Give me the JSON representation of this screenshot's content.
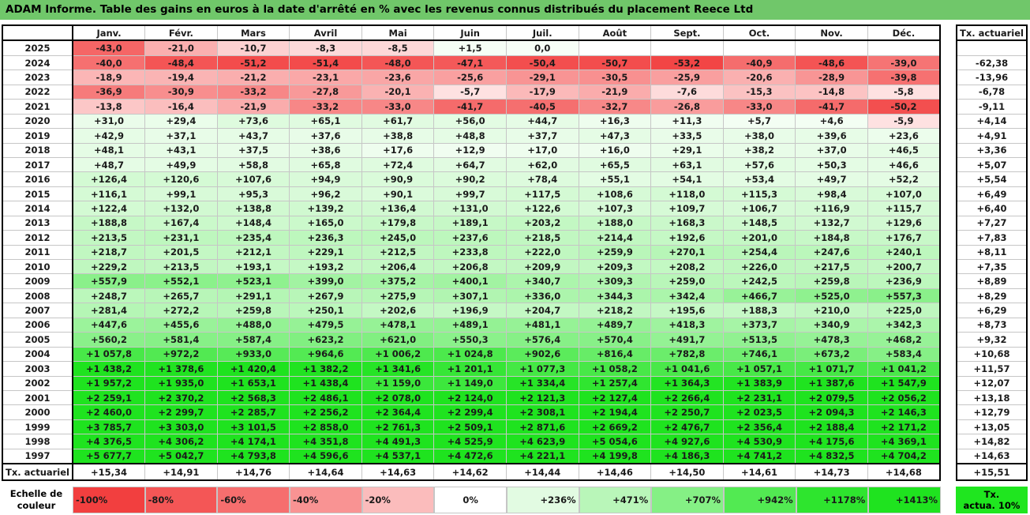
{
  "title": "ADAM Informe. Table des gains en euros à la date d'arrêté en % avec les revenus connus distribués du placement Reece Ltd",
  "chart_data": {
    "type": "heatmap",
    "title": "ADAM Informe. Table des gains en euros à la date d'arrêté en % avec les revenus connus distribués du placement Reece Ltd",
    "columns": [
      "Janv.",
      "Févr.",
      "Mars",
      "Avril",
      "Mai",
      "Juin",
      "Juil.",
      "Août",
      "Sept.",
      "Oct.",
      "Nov.",
      "Déc."
    ],
    "side_header": "Tx. actuariel",
    "rows": [
      {
        "year": "2025",
        "cells": [
          "-43,0",
          "-21,0",
          "-10,7",
          "-8,3",
          "-8,5",
          "+1,5",
          "0,0",
          "",
          "",
          "",
          "",
          ""
        ],
        "values": [
          -43.0,
          -21.0,
          -10.7,
          -8.3,
          -8.5,
          1.5,
          0.0,
          null,
          null,
          null,
          null,
          null
        ],
        "tx": ""
      },
      {
        "year": "2024",
        "cells": [
          "-40,0",
          "-48,4",
          "-51,2",
          "-51,4",
          "-48,0",
          "-47,1",
          "-50,4",
          "-50,7",
          "-53,2",
          "-40,9",
          "-48,6",
          "-39,0"
        ],
        "values": [
          -40.0,
          -48.4,
          -51.2,
          -51.4,
          -48.0,
          -47.1,
          -50.4,
          -50.7,
          -53.2,
          -40.9,
          -48.6,
          -39.0
        ],
        "tx": "-62,38"
      },
      {
        "year": "2023",
        "cells": [
          "-18,9",
          "-19,4",
          "-21,2",
          "-23,1",
          "-23,6",
          "-25,6",
          "-29,1",
          "-30,5",
          "-25,9",
          "-20,6",
          "-28,9",
          "-39,8"
        ],
        "values": [
          -18.9,
          -19.4,
          -21.2,
          -23.1,
          -23.6,
          -25.6,
          -29.1,
          -30.5,
          -25.9,
          -20.6,
          -28.9,
          -39.8
        ],
        "tx": "-13,96"
      },
      {
        "year": "2022",
        "cells": [
          "-36,9",
          "-30,9",
          "-33,2",
          "-27,8",
          "-20,1",
          "-5,7",
          "-17,9",
          "-21,9",
          "-7,6",
          "-15,3",
          "-14,8",
          "-5,8"
        ],
        "values": [
          -36.9,
          -30.9,
          -33.2,
          -27.8,
          -20.1,
          -5.7,
          -17.9,
          -21.9,
          -7.6,
          -15.3,
          -14.8,
          -5.8
        ],
        "tx": "-6,78"
      },
      {
        "year": "2021",
        "cells": [
          "-13,8",
          "-16,4",
          "-21,9",
          "-33,2",
          "-33,0",
          "-41,7",
          "-40,5",
          "-32,7",
          "-26,8",
          "-33,0",
          "-41,7",
          "-50,2"
        ],
        "values": [
          -13.8,
          -16.4,
          -21.9,
          -33.2,
          -33.0,
          -41.7,
          -40.5,
          -32.7,
          -26.8,
          -33.0,
          -41.7,
          -50.2
        ],
        "tx": "-9,11"
      },
      {
        "year": "2020",
        "cells": [
          "+31,0",
          "+29,4",
          "+73,6",
          "+65,1",
          "+61,7",
          "+56,0",
          "+44,7",
          "+16,3",
          "+11,3",
          "+5,7",
          "+4,6",
          "-5,9"
        ],
        "values": [
          31.0,
          29.4,
          73.6,
          65.1,
          61.7,
          56.0,
          44.7,
          16.3,
          11.3,
          5.7,
          4.6,
          -5.9
        ],
        "tx": "+4,14"
      },
      {
        "year": "2019",
        "cells": [
          "+42,9",
          "+37,1",
          "+43,7",
          "+37,6",
          "+38,8",
          "+48,8",
          "+37,7",
          "+47,3",
          "+33,5",
          "+38,0",
          "+39,6",
          "+23,6"
        ],
        "values": [
          42.9,
          37.1,
          43.7,
          37.6,
          38.8,
          48.8,
          37.7,
          47.3,
          33.5,
          38.0,
          39.6,
          23.6
        ],
        "tx": "+4,91"
      },
      {
        "year": "2018",
        "cells": [
          "+48,1",
          "+43,1",
          "+37,5",
          "+38,6",
          "+17,6",
          "+12,9",
          "+17,0",
          "+16,0",
          "+29,1",
          "+38,2",
          "+37,0",
          "+46,5"
        ],
        "values": [
          48.1,
          43.1,
          37.5,
          38.6,
          17.6,
          12.9,
          17.0,
          16.0,
          29.1,
          38.2,
          37.0,
          46.5
        ],
        "tx": "+3,36"
      },
      {
        "year": "2017",
        "cells": [
          "+48,7",
          "+49,9",
          "+58,8",
          "+65,8",
          "+72,4",
          "+64,7",
          "+62,0",
          "+65,5",
          "+63,1",
          "+57,6",
          "+50,3",
          "+46,6"
        ],
        "values": [
          48.7,
          49.9,
          58.8,
          65.8,
          72.4,
          64.7,
          62.0,
          65.5,
          63.1,
          57.6,
          50.3,
          46.6
        ],
        "tx": "+5,07"
      },
      {
        "year": "2016",
        "cells": [
          "+126,4",
          "+120,6",
          "+107,6",
          "+94,9",
          "+90,9",
          "+90,2",
          "+78,4",
          "+55,1",
          "+54,1",
          "+53,4",
          "+49,7",
          "+52,2"
        ],
        "values": [
          126.4,
          120.6,
          107.6,
          94.9,
          90.9,
          90.2,
          78.4,
          55.1,
          54.1,
          53.4,
          49.7,
          52.2
        ],
        "tx": "+5,54"
      },
      {
        "year": "2015",
        "cells": [
          "+116,1",
          "+99,1",
          "+95,3",
          "+96,2",
          "+90,1",
          "+99,7",
          "+117,5",
          "+108,6",
          "+118,0",
          "+115,3",
          "+98,4",
          "+107,0"
        ],
        "values": [
          116.1,
          99.1,
          95.3,
          96.2,
          90.1,
          99.7,
          117.5,
          108.6,
          118.0,
          115.3,
          98.4,
          107.0
        ],
        "tx": "+6,49"
      },
      {
        "year": "2014",
        "cells": [
          "+122,4",
          "+132,0",
          "+138,8",
          "+139,2",
          "+136,4",
          "+131,0",
          "+122,6",
          "+107,3",
          "+109,7",
          "+106,7",
          "+116,9",
          "+115,7"
        ],
        "values": [
          122.4,
          132.0,
          138.8,
          139.2,
          136.4,
          131.0,
          122.6,
          107.3,
          109.7,
          106.7,
          116.9,
          115.7
        ],
        "tx": "+6,40"
      },
      {
        "year": "2013",
        "cells": [
          "+188,8",
          "+167,4",
          "+148,4",
          "+165,0",
          "+179,8",
          "+189,1",
          "+203,2",
          "+188,0",
          "+168,3",
          "+148,5",
          "+132,7",
          "+129,6"
        ],
        "values": [
          188.8,
          167.4,
          148.4,
          165.0,
          179.8,
          189.1,
          203.2,
          188.0,
          168.3,
          148.5,
          132.7,
          129.6
        ],
        "tx": "+7,27"
      },
      {
        "year": "2012",
        "cells": [
          "+213,5",
          "+231,1",
          "+235,4",
          "+236,3",
          "+245,0",
          "+237,6",
          "+218,5",
          "+214,4",
          "+192,6",
          "+201,0",
          "+184,8",
          "+176,7"
        ],
        "values": [
          213.5,
          231.1,
          235.4,
          236.3,
          245.0,
          237.6,
          218.5,
          214.4,
          192.6,
          201.0,
          184.8,
          176.7
        ],
        "tx": "+7,83"
      },
      {
        "year": "2011",
        "cells": [
          "+218,7",
          "+201,5",
          "+212,1",
          "+229,1",
          "+212,5",
          "+233,8",
          "+222,0",
          "+259,9",
          "+270,1",
          "+254,4",
          "+247,6",
          "+240,1"
        ],
        "values": [
          218.7,
          201.5,
          212.1,
          229.1,
          212.5,
          233.8,
          222.0,
          259.9,
          270.1,
          254.4,
          247.6,
          240.1
        ],
        "tx": "+8,11"
      },
      {
        "year": "2010",
        "cells": [
          "+229,2",
          "+213,5",
          "+193,1",
          "+193,2",
          "+206,4",
          "+206,8",
          "+209,9",
          "+209,3",
          "+208,2",
          "+226,0",
          "+217,5",
          "+200,7"
        ],
        "values": [
          229.2,
          213.5,
          193.1,
          193.2,
          206.4,
          206.8,
          209.9,
          209.3,
          208.2,
          226.0,
          217.5,
          200.7
        ],
        "tx": "+7,35"
      },
      {
        "year": "2009",
        "cells": [
          "+557,9",
          "+552,1",
          "+523,1",
          "+399,0",
          "+375,2",
          "+400,1",
          "+340,7",
          "+309,3",
          "+259,0",
          "+242,5",
          "+259,8",
          "+236,9"
        ],
        "values": [
          557.9,
          552.1,
          523.1,
          399.0,
          375.2,
          400.1,
          340.7,
          309.3,
          259.0,
          242.5,
          259.8,
          236.9
        ],
        "tx": "+8,89"
      },
      {
        "year": "2008",
        "cells": [
          "+248,7",
          "+265,7",
          "+291,1",
          "+267,9",
          "+275,9",
          "+307,1",
          "+336,0",
          "+344,3",
          "+342,4",
          "+466,7",
          "+525,0",
          "+557,3"
        ],
        "values": [
          248.7,
          265.7,
          291.1,
          267.9,
          275.9,
          307.1,
          336.0,
          344.3,
          342.4,
          466.7,
          525.0,
          557.3
        ],
        "tx": "+8,29"
      },
      {
        "year": "2007",
        "cells": [
          "+281,4",
          "+272,2",
          "+259,8",
          "+250,1",
          "+202,6",
          "+196,9",
          "+204,7",
          "+218,2",
          "+195,6",
          "+188,3",
          "+210,0",
          "+225,0"
        ],
        "values": [
          281.4,
          272.2,
          259.8,
          250.1,
          202.6,
          196.9,
          204.7,
          218.2,
          195.6,
          188.3,
          210.0,
          225.0
        ],
        "tx": "+6,29"
      },
      {
        "year": "2006",
        "cells": [
          "+447,6",
          "+455,6",
          "+488,0",
          "+479,5",
          "+478,1",
          "+489,1",
          "+481,1",
          "+489,7",
          "+418,3",
          "+373,7",
          "+340,9",
          "+342,3"
        ],
        "values": [
          447.6,
          455.6,
          488.0,
          479.5,
          478.1,
          489.1,
          481.1,
          489.7,
          418.3,
          373.7,
          340.9,
          342.3
        ],
        "tx": "+8,73"
      },
      {
        "year": "2005",
        "cells": [
          "+560,2",
          "+581,4",
          "+587,4",
          "+623,2",
          "+621,0",
          "+550,3",
          "+576,4",
          "+570,4",
          "+491,7",
          "+513,5",
          "+478,3",
          "+468,2"
        ],
        "values": [
          560.2,
          581.4,
          587.4,
          623.2,
          621.0,
          550.3,
          576.4,
          570.4,
          491.7,
          513.5,
          478.3,
          468.2
        ],
        "tx": "+9,32"
      },
      {
        "year": "2004",
        "cells": [
          "+1 057,8",
          "+972,2",
          "+933,0",
          "+964,6",
          "+1 006,2",
          "+1 024,8",
          "+902,6",
          "+816,4",
          "+782,8",
          "+746,1",
          "+673,2",
          "+583,4"
        ],
        "values": [
          1057.8,
          972.2,
          933.0,
          964.6,
          1006.2,
          1024.8,
          902.6,
          816.4,
          782.8,
          746.1,
          673.2,
          583.4
        ],
        "tx": "+10,68"
      },
      {
        "year": "2003",
        "cells": [
          "+1 438,2",
          "+1 378,6",
          "+1 420,4",
          "+1 382,2",
          "+1 341,6",
          "+1 201,1",
          "+1 077,3",
          "+1 058,2",
          "+1 041,6",
          "+1 057,1",
          "+1 071,7",
          "+1 041,2"
        ],
        "values": [
          1438.2,
          1378.6,
          1420.4,
          1382.2,
          1341.6,
          1201.1,
          1077.3,
          1058.2,
          1041.6,
          1057.1,
          1071.7,
          1041.2
        ],
        "tx": "+11,57"
      },
      {
        "year": "2002",
        "cells": [
          "+1 957,2",
          "+1 935,0",
          "+1 653,1",
          "+1 438,4",
          "+1 159,0",
          "+1 149,0",
          "+1 334,4",
          "+1 257,4",
          "+1 364,3",
          "+1 383,9",
          "+1 387,6",
          "+1 547,9"
        ],
        "values": [
          1957.2,
          1935.0,
          1653.1,
          1438.4,
          1159.0,
          1149.0,
          1334.4,
          1257.4,
          1364.3,
          1383.9,
          1387.6,
          1547.9
        ],
        "tx": "+12,07"
      },
      {
        "year": "2001",
        "cells": [
          "+2 259,1",
          "+2 370,2",
          "+2 568,3",
          "+2 486,1",
          "+2 078,0",
          "+2 124,0",
          "+2 121,3",
          "+2 127,4",
          "+2 266,4",
          "+2 231,1",
          "+2 079,5",
          "+2 056,2"
        ],
        "values": [
          2259.1,
          2370.2,
          2568.3,
          2486.1,
          2078.0,
          2124.0,
          2121.3,
          2127.4,
          2266.4,
          2231.1,
          2079.5,
          2056.2
        ],
        "tx": "+13,18"
      },
      {
        "year": "2000",
        "cells": [
          "+2 460,0",
          "+2 299,7",
          "+2 285,7",
          "+2 256,2",
          "+2 364,4",
          "+2 299,4",
          "+2 308,1",
          "+2 194,4",
          "+2 250,7",
          "+2 023,5",
          "+2 094,3",
          "+2 146,3"
        ],
        "values": [
          2460.0,
          2299.7,
          2285.7,
          2256.2,
          2364.4,
          2299.4,
          2308.1,
          2194.4,
          2250.7,
          2023.5,
          2094.3,
          2146.3
        ],
        "tx": "+12,79"
      },
      {
        "year": "1999",
        "cells": [
          "+3 785,7",
          "+3 303,0",
          "+3 101,5",
          "+2 858,0",
          "+2 761,3",
          "+2 509,1",
          "+2 871,6",
          "+2 669,2",
          "+2 476,7",
          "+2 356,4",
          "+2 188,4",
          "+2 171,2"
        ],
        "values": [
          3785.7,
          3303.0,
          3101.5,
          2858.0,
          2761.3,
          2509.1,
          2871.6,
          2669.2,
          2476.7,
          2356.4,
          2188.4,
          2171.2
        ],
        "tx": "+13,05"
      },
      {
        "year": "1998",
        "cells": [
          "+4 376,5",
          "+4 306,2",
          "+4 174,1",
          "+4 351,8",
          "+4 491,3",
          "+4 525,9",
          "+4 623,9",
          "+5 054,6",
          "+4 927,6",
          "+4 530,9",
          "+4 175,6",
          "+4 369,1"
        ],
        "values": [
          4376.5,
          4306.2,
          4174.1,
          4351.8,
          4491.3,
          4525.9,
          4623.9,
          5054.6,
          4927.6,
          4530.9,
          4175.6,
          4369.1
        ],
        "tx": "+14,82"
      },
      {
        "year": "1997",
        "cells": [
          "+5 677,7",
          "+5 042,7",
          "+4 793,8",
          "+4 596,6",
          "+4 537,1",
          "+4 472,6",
          "+4 221,1",
          "+4 199,8",
          "+4 186,3",
          "+4 741,2",
          "+4 832,5",
          "+4 704,2"
        ],
        "values": [
          5677.7,
          5042.7,
          4793.8,
          4596.6,
          4537.1,
          4472.6,
          4221.1,
          4199.8,
          4186.3,
          4741.2,
          4832.5,
          4704.2
        ],
        "tx": "+14,63"
      }
    ],
    "total_row": {
      "label": "Tx. actuariel",
      "cells": [
        "+15,34",
        "+14,91",
        "+14,76",
        "+14,64",
        "+14,63",
        "+14,62",
        "+14,44",
        "+14,46",
        "+14,50",
        "+14,61",
        "+14,73",
        "+14,68"
      ],
      "tx": "+15,51"
    },
    "legend": {
      "label_line1": "Echelle de",
      "label_line2": "couleur",
      "steps": [
        {
          "text": "-100%",
          "color": "#f23f3f",
          "align": "left"
        },
        {
          "text": "-80%",
          "color": "#f45656",
          "align": "left"
        },
        {
          "text": "-60%",
          "color": "#f66e6e",
          "align": "left"
        },
        {
          "text": "-40%",
          "color": "#f99393",
          "align": "left"
        },
        {
          "text": "-20%",
          "color": "#fbbcbc",
          "align": "left"
        },
        {
          "text": "0%",
          "color": "#ffffff",
          "align": "center"
        },
        {
          "text": "+236%",
          "color": "#e2fbe2",
          "align": "right"
        },
        {
          "text": "+471%",
          "color": "#b9f6b9",
          "align": "right"
        },
        {
          "text": "+707%",
          "color": "#85f085",
          "align": "right"
        },
        {
          "text": "+942%",
          "color": "#52ea52",
          "align": "right"
        },
        {
          "text": "+1178%",
          "color": "#2ee52e",
          "align": "right"
        },
        {
          "text": "+1413%",
          "color": "#1fe31f",
          "align": "right"
        }
      ],
      "right_line1": "Tx.",
      "right_line2": "actua. 10%",
      "right_color": "#1fe61f"
    }
  }
}
